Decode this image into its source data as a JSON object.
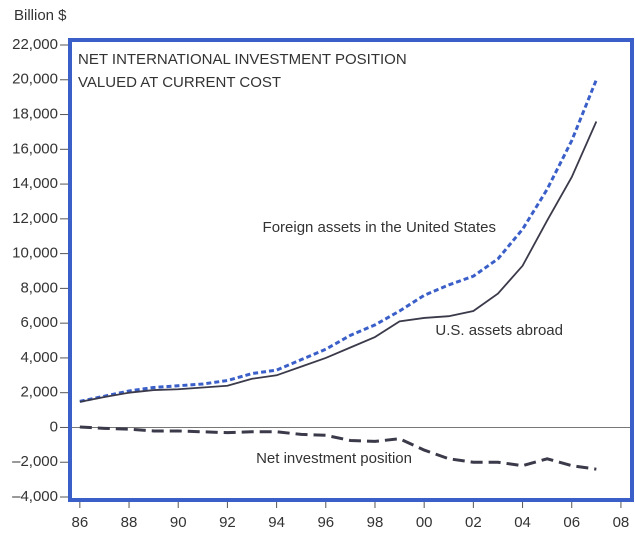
{
  "chart_data": {
    "type": "line",
    "unit_label": "Billion $",
    "title_lines": [
      "NET INTERNATIONAL INVESTMENT POSITION",
      "VALUED AT CURRENT COST"
    ],
    "x": [
      1986,
      1987,
      1988,
      1989,
      1990,
      1991,
      1992,
      1993,
      1994,
      1995,
      1996,
      1997,
      1998,
      1999,
      2000,
      2001,
      2002,
      2003,
      2004,
      2005,
      2006,
      2007
    ],
    "series": [
      {
        "name": "Foreign assets in the United States",
        "color": "#3b5fc8",
        "dash": "dotted",
        "values": [
          1500,
          1800,
          2100,
          2300,
          2400,
          2500,
          2700,
          3100,
          3300,
          3900,
          4500,
          5300,
          5900,
          6700,
          7600,
          8200,
          8700,
          9700,
          11400,
          13700,
          16500,
          20000
        ]
      },
      {
        "name": "U.S. assets abroad",
        "color": "#3a3a4a",
        "dash": "solid",
        "values": [
          1470,
          1750,
          2000,
          2150,
          2200,
          2300,
          2400,
          2800,
          3000,
          3500,
          4000,
          4600,
          5200,
          6100,
          6300,
          6400,
          6700,
          7700,
          9300,
          11900,
          14400,
          17600
        ]
      },
      {
        "name": "Net investment position",
        "color": "#3a3a4a",
        "dash": "dashed",
        "values": [
          30,
          -50,
          -100,
          -200,
          -200,
          -250,
          -300,
          -250,
          -250,
          -400,
          -450,
          -750,
          -800,
          -650,
          -1300,
          -1800,
          -2000,
          -2000,
          -2200,
          -1800,
          -2200,
          -2400
        ]
      }
    ],
    "xlim": [
      1985.6,
      2008.45
    ],
    "xticks": [
      {
        "value": 1986,
        "label": "86"
      },
      {
        "value": 1988,
        "label": "88"
      },
      {
        "value": 1990,
        "label": "90"
      },
      {
        "value": 1992,
        "label": "92"
      },
      {
        "value": 1994,
        "label": "94"
      },
      {
        "value": 1996,
        "label": "96"
      },
      {
        "value": 1998,
        "label": "98"
      },
      {
        "value": 2000,
        "label": "00"
      },
      {
        "value": 2002,
        "label": "02"
      },
      {
        "value": 2004,
        "label": "04"
      },
      {
        "value": 2006,
        "label": "06"
      },
      {
        "value": 2008,
        "label": "08"
      }
    ],
    "ylim": [
      -4000,
      22000
    ],
    "yticks": [
      {
        "value": -4000,
        "label": "–4,000"
      },
      {
        "value": -2000,
        "label": "–2,000"
      },
      0,
      {
        "value": 2000,
        "label": "2,000"
      },
      {
        "value": 4000,
        "label": "4,000"
      },
      {
        "value": 6000,
        "label": "6,000"
      },
      {
        "value": 8000,
        "label": "8,000"
      },
      {
        "value": 10000,
        "label": "10,000"
      },
      {
        "value": 12000,
        "label": "12,000"
      },
      {
        "value": 14000,
        "label": "14,000"
      },
      {
        "value": 16000,
        "label": "16,000"
      },
      {
        "value": 18000,
        "label": "18,000"
      },
      {
        "value": 20000,
        "label": "20,000"
      },
      {
        "value": 22000,
        "label": "22,000"
      }
    ],
    "frame_color": "#3b5fc8"
  }
}
